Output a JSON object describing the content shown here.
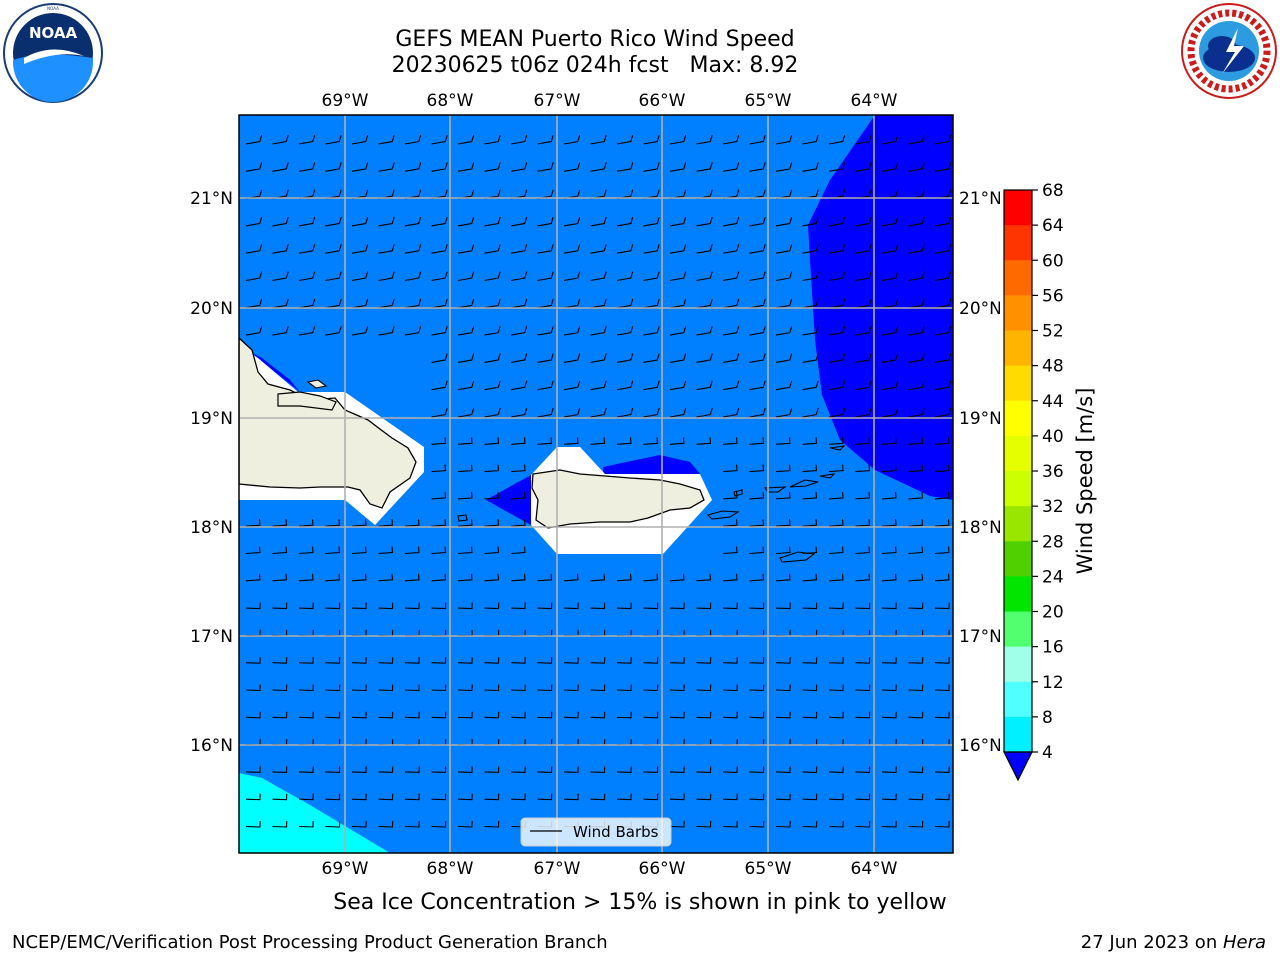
{
  "title": {
    "line1": "GEFS MEAN Puerto Rico Wind Speed",
    "line2": "20230625 t06z 024h fcst   Max: 8.92"
  },
  "logos": {
    "left": {
      "icon": "noaa-logo-icon",
      "text": "NOAA",
      "ring_text": "NATIONAL OCEANIC AND ATMOSPHERIC ADMINISTRATION · U.S. DEPARTMENT OF COMMERCE"
    },
    "right": {
      "icon": "nws-logo-icon",
      "ring_text": "NATIONAL WEATHER SERVICE"
    }
  },
  "map": {
    "lon_labels": [
      "69°W",
      "68°W",
      "67°W",
      "66°W",
      "65°W",
      "64°W"
    ],
    "lat_labels": [
      "21°N",
      "20°N",
      "19°N",
      "18°N",
      "17°N",
      "16°N"
    ],
    "legend_label": "Wind Barbs",
    "colors": {
      "ocean": "#0080ff",
      "high": "#0000ff",
      "low": "#00ffff",
      "land": "#efefdf",
      "grid": "#b0b0b0"
    }
  },
  "colorbar": {
    "label": "Wind Speed [m/s]",
    "ticks": [
      "68",
      "64",
      "60",
      "56",
      "52",
      "48",
      "44",
      "40",
      "36",
      "32",
      "28",
      "24",
      "20",
      "16",
      "12",
      "8",
      "4"
    ],
    "colors": [
      "#ff0000",
      "#ff3500",
      "#ff6a00",
      "#ff9000",
      "#ffb500",
      "#ffdb00",
      "#ffff00",
      "#e6ff00",
      "#ccff00",
      "#99e600",
      "#50d000",
      "#00e600",
      "#52ff6e",
      "#a0ffe8",
      "#50ffff",
      "#00f0ff",
      "#0080ff"
    ],
    "under_color": "#0000ff"
  },
  "caption": "Sea Ice Concentration > 15% is shown in pink to yellow",
  "footer": {
    "left": "NCEP/EMC/Verification Post Processing Product Generation Branch",
    "right_prefix": "27 Jun 2023 on ",
    "right_machine": "Hera"
  }
}
